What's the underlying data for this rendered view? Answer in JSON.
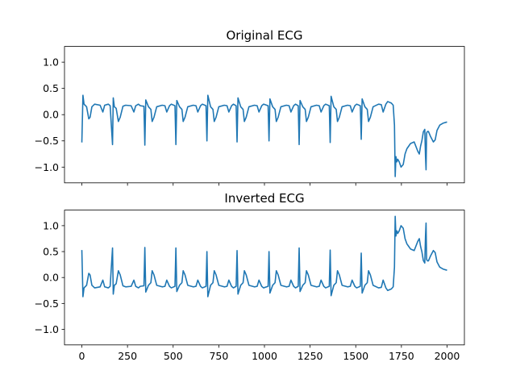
{
  "figure": {
    "background": "#ffffff"
  },
  "chart_data": [
    {
      "type": "line",
      "title": "Original ECG",
      "xlabel": "",
      "ylabel": "",
      "xlim": [
        -95,
        2095
      ],
      "ylim": [
        -1.3,
        1.3
      ],
      "x_ticks": [
        0,
        250,
        500,
        750,
        1000,
        1250,
        1500,
        1750,
        2000
      ],
      "x_tick_labels": [],
      "y_ticks": [
        -1.0,
        -0.5,
        0.0,
        0.5,
        1.0
      ],
      "y_tick_labels": [
        "−1.0",
        "−0.5",
        "0.0",
        "0.5",
        "1.0"
      ],
      "grid": false,
      "legend": "none",
      "series": [
        {
          "color": "#1f77b4",
          "x": [
            0,
            6,
            12,
            26,
            38,
            45,
            55,
            70,
            100,
            115,
            125,
            145,
            155,
            168,
            172,
            178,
            188,
            200,
            210,
            225,
            240,
            270,
            285,
            295,
            310,
            320,
            340,
            345,
            350,
            365,
            378,
            385,
            395,
            410,
            440,
            455,
            465,
            480,
            490,
            510,
            515,
            520,
            535,
            548,
            555,
            565,
            580,
            610,
            625,
            635,
            650,
            660,
            680,
            685,
            690,
            705,
            718,
            725,
            735,
            750,
            780,
            795,
            805,
            820,
            830,
            845,
            850,
            855,
            870,
            883,
            890,
            900,
            915,
            945,
            960,
            970,
            985,
            995,
            1020,
            1025,
            1030,
            1045,
            1058,
            1065,
            1075,
            1090,
            1120,
            1135,
            1145,
            1160,
            1170,
            1185,
            1190,
            1195,
            1210,
            1223,
            1230,
            1240,
            1255,
            1285,
            1300,
            1310,
            1325,
            1335,
            1355,
            1360,
            1365,
            1380,
            1393,
            1400,
            1410,
            1425,
            1455,
            1470,
            1480,
            1495,
            1505,
            1525,
            1530,
            1535,
            1550,
            1563,
            1570,
            1580,
            1595,
            1625,
            1640,
            1650,
            1665,
            1675,
            1695,
            1705,
            1712,
            1716,
            1720,
            1725,
            1730,
            1738,
            1748,
            1760,
            1770,
            1780,
            1790,
            1800,
            1820,
            1840,
            1848,
            1855,
            1862,
            1870,
            1878,
            1882,
            1885,
            1888,
            1893,
            1898,
            1910,
            1925,
            1935,
            1945,
            1960,
            1980,
            2000
          ],
          "y": [
            -0.53,
            0.37,
            0.2,
            0.15,
            -0.08,
            -0.05,
            0.15,
            0.2,
            0.18,
            0.05,
            0.18,
            0.2,
            0.17,
            -0.57,
            0.32,
            0.15,
            0.12,
            -0.13,
            -0.05,
            0.16,
            0.18,
            0.17,
            0.05,
            0.17,
            0.2,
            0.17,
            0.16,
            -0.58,
            0.28,
            0.15,
            0.1,
            -0.13,
            -0.05,
            0.15,
            0.18,
            0.17,
            0.05,
            0.17,
            0.2,
            0.17,
            -0.57,
            0.27,
            0.15,
            0.1,
            -0.13,
            -0.05,
            0.15,
            0.18,
            0.17,
            0.05,
            0.17,
            0.2,
            0.17,
            -0.5,
            0.37,
            0.15,
            0.1,
            -0.13,
            -0.05,
            0.15,
            0.18,
            0.17,
            0.05,
            0.17,
            0.2,
            0.17,
            -0.52,
            0.32,
            0.15,
            0.1,
            -0.13,
            -0.05,
            0.15,
            0.18,
            0.17,
            0.05,
            0.17,
            0.2,
            0.17,
            -0.5,
            0.3,
            0.15,
            0.1,
            -0.13,
            -0.05,
            0.15,
            0.18,
            0.17,
            0.05,
            0.17,
            0.2,
            0.17,
            -0.57,
            0.27,
            0.15,
            0.1,
            -0.13,
            -0.05,
            0.15,
            0.18,
            0.17,
            0.05,
            0.17,
            0.2,
            0.17,
            -0.53,
            0.35,
            0.15,
            0.1,
            -0.13,
            -0.05,
            0.15,
            0.18,
            0.17,
            0.05,
            0.17,
            0.2,
            0.17,
            -0.47,
            0.3,
            0.15,
            0.1,
            -0.13,
            -0.05,
            0.15,
            0.2,
            0.19,
            0.05,
            0.2,
            0.25,
            0.22,
            0.18,
            -0.2,
            -1.18,
            -0.8,
            -0.9,
            -0.85,
            -0.9,
            -1.0,
            -0.95,
            -0.75,
            -0.65,
            -0.6,
            -0.55,
            -0.52,
            -0.7,
            -0.75,
            -0.6,
            -0.5,
            -0.33,
            -0.28,
            -0.8,
            -1.05,
            -0.35,
            -0.32,
            -0.32,
            -0.42,
            -0.52,
            -0.48,
            -0.3,
            -0.2,
            -0.16,
            -0.14
          ]
        }
      ]
    },
    {
      "type": "line",
      "title": "Inverted ECG",
      "xlabel": "",
      "ylabel": "",
      "xlim": [
        -95,
        2095
      ],
      "ylim": [
        -1.3,
        1.3
      ],
      "x_ticks": [
        0,
        250,
        500,
        750,
        1000,
        1250,
        1500,
        1750,
        2000
      ],
      "x_tick_labels": [
        "0",
        "250",
        "500",
        "750",
        "1000",
        "1250",
        "1500",
        "1750",
        "2000"
      ],
      "y_ticks": [
        -1.0,
        -0.5,
        0.0,
        0.5,
        1.0
      ],
      "y_tick_labels": [
        "−1.0",
        "−0.5",
        "0.0",
        "0.5",
        "1.0"
      ],
      "grid": false,
      "legend": "none",
      "series": [
        {
          "color": "#1f77b4",
          "x": [
            0,
            6,
            12,
            26,
            38,
            45,
            55,
            70,
            100,
            115,
            125,
            145,
            155,
            168,
            172,
            178,
            188,
            200,
            210,
            225,
            240,
            270,
            285,
            295,
            310,
            320,
            340,
            345,
            350,
            365,
            378,
            385,
            395,
            410,
            440,
            455,
            465,
            480,
            490,
            510,
            515,
            520,
            535,
            548,
            555,
            565,
            580,
            610,
            625,
            635,
            650,
            660,
            680,
            685,
            690,
            705,
            718,
            725,
            735,
            750,
            780,
            795,
            805,
            820,
            830,
            845,
            850,
            855,
            870,
            883,
            890,
            900,
            915,
            945,
            960,
            970,
            985,
            995,
            1020,
            1025,
            1030,
            1045,
            1058,
            1065,
            1075,
            1090,
            1120,
            1135,
            1145,
            1160,
            1170,
            1185,
            1190,
            1195,
            1210,
            1223,
            1230,
            1240,
            1255,
            1285,
            1300,
            1310,
            1325,
            1335,
            1355,
            1360,
            1365,
            1380,
            1393,
            1400,
            1410,
            1425,
            1455,
            1470,
            1480,
            1495,
            1505,
            1525,
            1530,
            1535,
            1550,
            1563,
            1570,
            1580,
            1595,
            1625,
            1640,
            1650,
            1665,
            1675,
            1695,
            1705,
            1712,
            1716,
            1720,
            1725,
            1730,
            1738,
            1748,
            1760,
            1770,
            1780,
            1790,
            1800,
            1820,
            1840,
            1848,
            1855,
            1862,
            1870,
            1878,
            1882,
            1885,
            1888,
            1893,
            1898,
            1910,
            1925,
            1935,
            1945,
            1960,
            1980,
            2000
          ],
          "y": [
            0.53,
            -0.37,
            -0.2,
            -0.15,
            0.08,
            0.05,
            -0.15,
            -0.2,
            -0.18,
            -0.05,
            -0.18,
            -0.2,
            -0.17,
            0.57,
            -0.32,
            -0.15,
            -0.12,
            0.13,
            0.05,
            -0.16,
            -0.18,
            -0.17,
            -0.05,
            -0.17,
            -0.2,
            -0.17,
            -0.16,
            0.58,
            -0.28,
            -0.15,
            -0.1,
            0.13,
            0.05,
            -0.15,
            -0.18,
            -0.17,
            -0.05,
            -0.17,
            -0.2,
            -0.17,
            0.57,
            -0.27,
            -0.15,
            -0.1,
            0.13,
            0.05,
            -0.15,
            -0.18,
            -0.17,
            -0.05,
            -0.17,
            -0.2,
            -0.17,
            0.5,
            -0.37,
            -0.15,
            -0.1,
            0.13,
            0.05,
            -0.15,
            -0.18,
            -0.17,
            -0.05,
            -0.17,
            -0.2,
            -0.17,
            0.52,
            -0.32,
            -0.15,
            -0.1,
            0.13,
            0.05,
            -0.15,
            -0.18,
            -0.17,
            -0.05,
            -0.17,
            -0.2,
            -0.17,
            0.5,
            -0.3,
            -0.15,
            -0.1,
            0.13,
            0.05,
            -0.15,
            -0.18,
            -0.17,
            -0.05,
            -0.17,
            -0.2,
            -0.17,
            0.57,
            -0.27,
            -0.15,
            -0.1,
            0.13,
            0.05,
            -0.15,
            -0.18,
            -0.17,
            -0.05,
            -0.17,
            -0.2,
            -0.17,
            0.53,
            -0.35,
            -0.15,
            -0.1,
            0.13,
            0.05,
            -0.15,
            -0.18,
            -0.17,
            -0.05,
            -0.17,
            -0.2,
            -0.17,
            0.47,
            -0.3,
            -0.15,
            -0.1,
            0.13,
            0.05,
            -0.15,
            -0.2,
            -0.19,
            -0.05,
            -0.2,
            -0.25,
            -0.22,
            -0.18,
            0.2,
            1.18,
            0.8,
            0.9,
            0.85,
            0.9,
            1.0,
            0.95,
            0.75,
            0.65,
            0.6,
            0.55,
            0.52,
            0.7,
            0.75,
            0.6,
            0.5,
            0.33,
            0.28,
            0.8,
            1.05,
            0.35,
            0.32,
            0.32,
            0.42,
            0.52,
            0.48,
            0.3,
            0.2,
            0.16,
            0.14
          ]
        }
      ]
    }
  ]
}
